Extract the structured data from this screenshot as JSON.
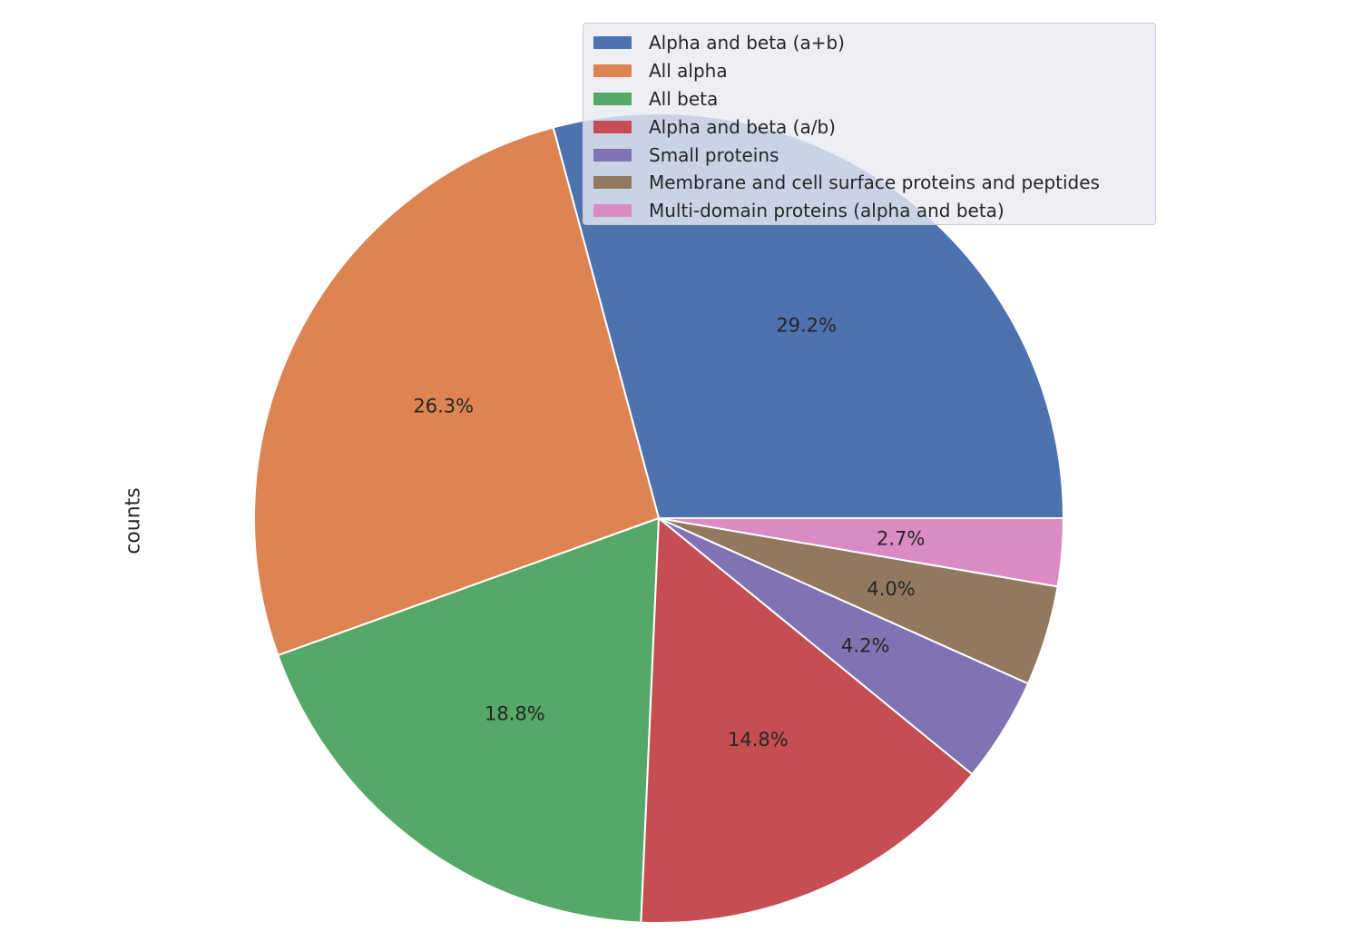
{
  "chart_data": {
    "type": "pie",
    "categories": [
      "Alpha and beta (a+b)",
      "All alpha",
      "All beta",
      "Alpha and beta (a/b)",
      "Small proteins",
      "Membrane and cell surface proteins and peptides",
      "Multi-domain proteins (alpha and beta)"
    ],
    "values": [
      29.2,
      26.3,
      18.8,
      14.8,
      4.2,
      4.0,
      2.7
    ],
    "labels": [
      "29.2%",
      "26.3%",
      "18.8%",
      "14.8%",
      "4.2%",
      "4.0%",
      "2.7%"
    ],
    "colors": [
      "#4c72b0",
      "#dd8452",
      "#55a868",
      "#c44e52",
      "#8172b3",
      "#937860",
      "#da8bc3"
    ],
    "ylabel": "counts",
    "start_angle_deg": 0,
    "direction": "counterclockwise",
    "legend_position": "upper right"
  }
}
